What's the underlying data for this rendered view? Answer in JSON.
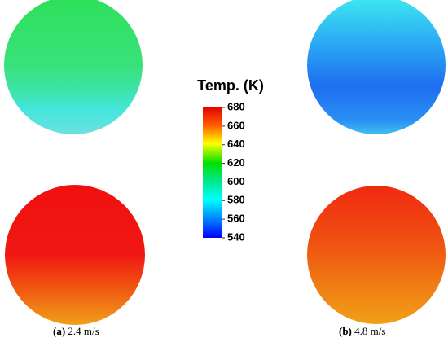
{
  "colorbar": {
    "title": "Temp. (K)",
    "range": [
      540,
      680
    ],
    "ticks": [
      540,
      560,
      580,
      600,
      620,
      640,
      660,
      680
    ]
  },
  "captions": [
    {
      "label": "(a)",
      "text": "2.4 m/s"
    },
    {
      "label": "(b)",
      "text": "4.8 m/s"
    }
  ]
}
